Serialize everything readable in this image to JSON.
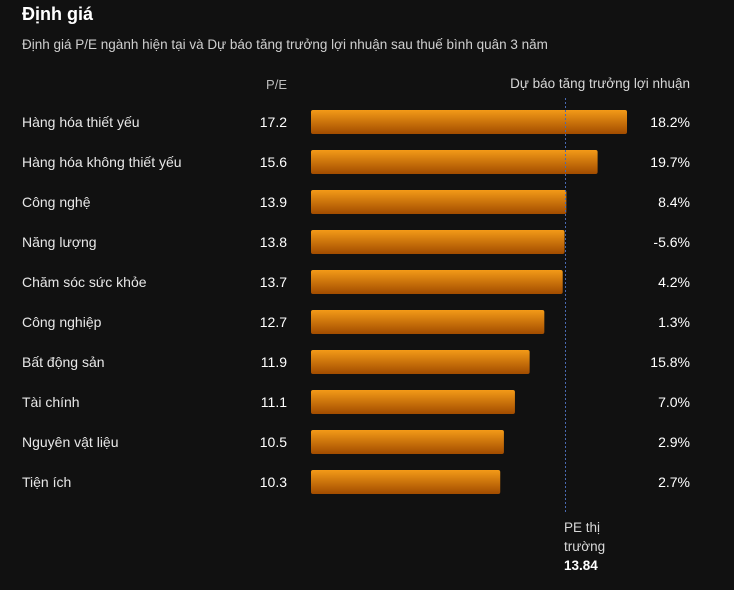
{
  "header": {
    "title": "Định giá",
    "subtitle": "Định giá P/E ngành hiện tại và Dự báo tăng trưởng lợi nhuận sau thuế bình quân 3 năm",
    "pe_column": "P/E",
    "growth_column": "Dự báo tăng trưởng lợi nhuận"
  },
  "market": {
    "label_line1": "PE thị",
    "label_line2": "trường",
    "value": "13.84"
  },
  "colors": {
    "bar_top": "#f39a18",
    "bar_bottom": "#a24c00",
    "background": "#111111",
    "reference_line": "#4a6ab0"
  },
  "chart_data": {
    "type": "bar",
    "orientation": "horizontal",
    "categories": [
      "Hàng hóa thiết yếu",
      "Hàng hóa không thiết yếu",
      "Công nghệ",
      "Năng lượng",
      "Chăm sóc sức khỏe",
      "Công nghiệp",
      "Bất động sản",
      "Tài chính",
      "Nguyên vật liệu",
      "Tiện ích"
    ],
    "values": [
      17.2,
      15.6,
      13.9,
      13.8,
      13.7,
      12.7,
      11.9,
      11.1,
      10.5,
      10.3
    ],
    "value_labels": [
      "17.2",
      "15.6",
      "13.9",
      "13.8",
      "13.7",
      "12.7",
      "11.9",
      "11.1",
      "10.5",
      "10.3"
    ],
    "growth_forecast": [
      18.2,
      19.7,
      8.4,
      -5.6,
      4.2,
      1.3,
      15.8,
      7.0,
      2.9,
      2.7
    ],
    "growth_labels": [
      "18.2%",
      "19.7%",
      "8.4%",
      "-5.6%",
      "4.2%",
      "1.3%",
      "15.8%",
      "7.0%",
      "2.9%",
      "2.7%"
    ],
    "reference_value": 13.84,
    "xlim": [
      0,
      17.2
    ]
  }
}
